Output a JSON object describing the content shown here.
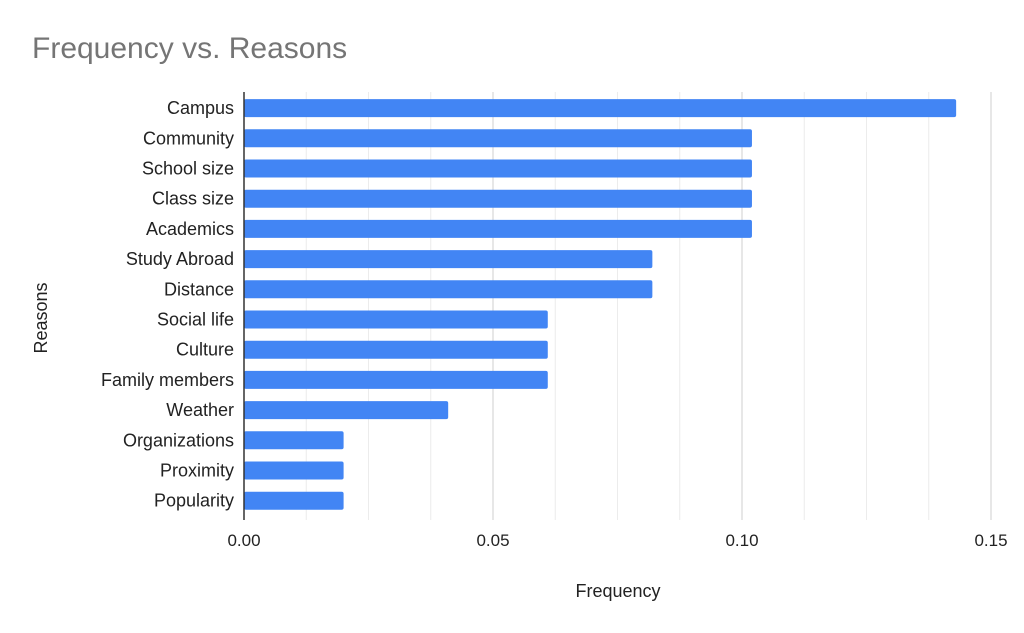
{
  "chart_data": {
    "type": "bar",
    "orientation": "horizontal",
    "title": "Frequency vs. Reasons",
    "xlabel": "Frequency",
    "ylabel": "Reasons",
    "xlim": [
      0,
      0.15
    ],
    "xticks": [
      0,
      0.05,
      0.1,
      0.15
    ],
    "xtick_labels": [
      "0.00",
      "0.05",
      "0.10",
      "0.15"
    ],
    "grid": true,
    "bar_color": "#4285f4",
    "categories": [
      "Campus",
      "Community",
      "School size",
      "Class size",
      "Academics",
      "Study Abroad",
      "Distance",
      "Social life",
      "Culture",
      "Family members",
      "Weather",
      "Organizations",
      "Proximity",
      "Popularity"
    ],
    "values": [
      0.143,
      0.102,
      0.102,
      0.102,
      0.102,
      0.082,
      0.082,
      0.061,
      0.061,
      0.061,
      0.041,
      0.02,
      0.02,
      0.02
    ]
  }
}
